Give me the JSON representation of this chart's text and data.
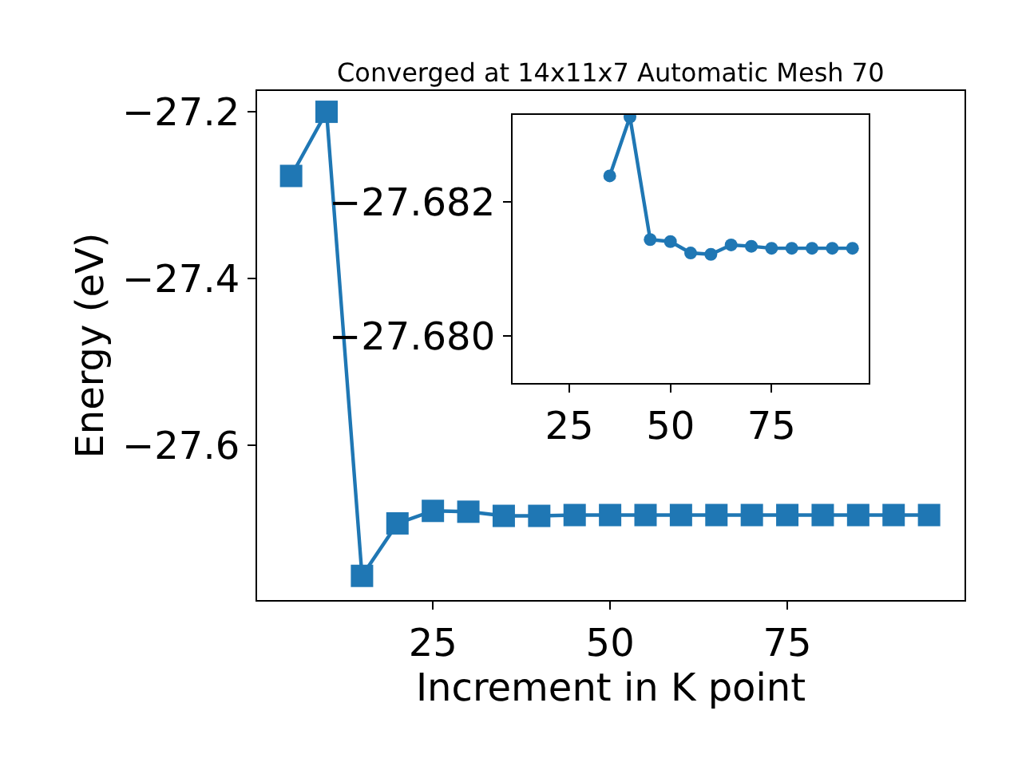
{
  "chart_data": [
    {
      "type": "line",
      "title": "Converged at 14x11x7 Automatic Mesh 70",
      "xlabel": "Increment in K point",
      "ylabel": "Energy (eV)",
      "x": [
        5,
        10,
        15,
        20,
        25,
        30,
        35,
        40,
        45,
        50,
        55,
        60,
        65,
        70,
        75,
        80,
        85,
        90,
        95
      ],
      "series": [
        {
          "color": "#1f77b4",
          "values": [
            -27.277,
            -27.2,
            -27.757,
            -27.694,
            -27.679,
            -27.68,
            -27.685,
            -27.685,
            -27.684,
            -27.684,
            -27.684,
            -27.684,
            -27.684,
            -27.684,
            -27.684,
            -27.684,
            -27.684,
            -27.684,
            -27.684
          ]
        }
      ],
      "xlim": [
        0.2,
        100
      ],
      "xticks": [
        25,
        50,
        75
      ],
      "ylim": [
        -27.786,
        -27.175
      ],
      "yticks": [
        {
          "value": -27.2,
          "label": "−27.2"
        },
        {
          "value": -27.4,
          "label": "−27.4"
        },
        {
          "value": -27.6,
          "label": "−27.6"
        }
      ],
      "marker": "square",
      "line_style": "solid"
    },
    {
      "type": "line",
      "x": [
        35,
        40,
        45,
        50,
        55,
        60,
        65,
        70,
        75,
        80,
        85,
        90,
        95
      ],
      "series": [
        {
          "color": "#1f77b4",
          "values": [
            -27.68239,
            -27.68327,
            -27.68144,
            -27.68141,
            -27.68124,
            -27.68122,
            -27.68136,
            -27.68134,
            -27.68131,
            -27.68131,
            -27.68131,
            -27.68131,
            -27.68131
          ]
        }
      ],
      "xlim": [
        11,
        99
      ],
      "xticks": [
        25,
        50,
        75
      ],
      "ylim": [
        -27.6793,
        -27.6833
      ],
      "yticks": [
        {
          "value": -27.682,
          "label": "−27.682"
        },
        {
          "value": -27.68,
          "label": "−27.680"
        }
      ],
      "marker": "circle",
      "line_style": "solid"
    }
  ]
}
